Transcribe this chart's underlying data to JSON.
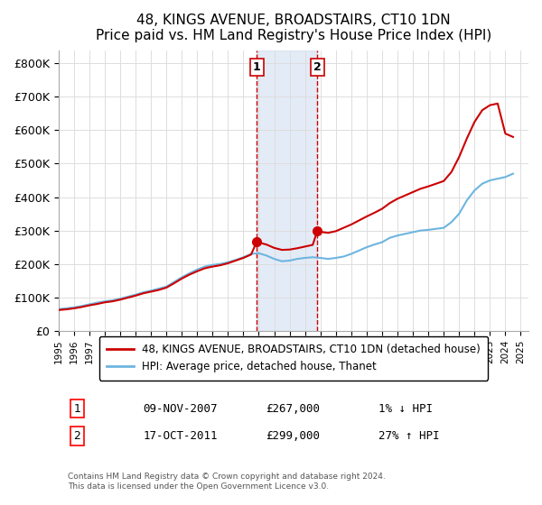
{
  "title": "48, KINGS AVENUE, BROADSTAIRS, CT10 1DN",
  "subtitle": "Price paid vs. HM Land Registry's House Price Index (HPI)",
  "ylabel_ticks": [
    "£0",
    "£100K",
    "£200K",
    "£300K",
    "£400K",
    "£500K",
    "£600K",
    "£700K",
    "£800K"
  ],
  "ytick_values": [
    0,
    100000,
    200000,
    300000,
    400000,
    500000,
    600000,
    700000,
    800000
  ],
  "ylim": [
    0,
    840000
  ],
  "xlim_start": 1995.5,
  "xlim_end": 2025.5,
  "sale1": {
    "date_label": "09-NOV-2007",
    "price": 267000,
    "pct": "1%",
    "direction": "↓",
    "year": 2007.87
  },
  "sale2": {
    "date_label": "17-OCT-2011",
    "price": 299000,
    "pct": "27%",
    "direction": "↑",
    "year": 2011.8
  },
  "hpi_color": "#6eb5e0",
  "price_color": "#cc0000",
  "sale_marker_color": "#cc0000",
  "shade_color": "#c8d8ee",
  "legend_label1": "48, KINGS AVENUE, BROADSTAIRS, CT10 1DN (detached house)",
  "legend_label2": "HPI: Average price, detached house, Thanet",
  "footer": "Contains HM Land Registry data © Crown copyright and database right 2024.\nThis data is licensed under the Open Government Licence v3.0.",
  "table_rows": [
    {
      "num": "1",
      "date": "09-NOV-2007",
      "price": "£267,000",
      "change": "1% ↓ HPI"
    },
    {
      "num": "2",
      "date": "17-OCT-2011",
      "price": "£299,000",
      "change": "27% ↑ HPI"
    }
  ],
  "hpi_x": [
    1995,
    1995.5,
    1996,
    1996.5,
    1997,
    1997.5,
    1998,
    1998.5,
    1999,
    1999.5,
    2000,
    2000.5,
    2001,
    2001.5,
    2002,
    2002.5,
    2003,
    2003.5,
    2004,
    2004.5,
    2005,
    2005.5,
    2006,
    2006.5,
    2007,
    2007.5,
    2008,
    2008.5,
    2009,
    2009.5,
    2010,
    2010.5,
    2011,
    2011.5,
    2012,
    2012.5,
    2013,
    2013.5,
    2014,
    2014.5,
    2015,
    2015.5,
    2016,
    2016.5,
    2017,
    2017.5,
    2018,
    2018.5,
    2019,
    2019.5,
    2020,
    2020.5,
    2021,
    2021.5,
    2022,
    2022.5,
    2023,
    2023.5,
    2024,
    2024.5
  ],
  "hpi_y": [
    65000,
    67000,
    70000,
    74000,
    79000,
    84000,
    88000,
    91000,
    96000,
    102000,
    108000,
    115000,
    120000,
    126000,
    132000,
    146000,
    160000,
    172000,
    183000,
    192000,
    197000,
    200000,
    205000,
    212000,
    220000,
    230000,
    232000,
    225000,
    215000,
    208000,
    210000,
    215000,
    218000,
    220000,
    218000,
    215000,
    218000,
    222000,
    230000,
    240000,
    250000,
    258000,
    265000,
    278000,
    285000,
    290000,
    295000,
    300000,
    302000,
    305000,
    308000,
    325000,
    350000,
    390000,
    420000,
    440000,
    450000,
    455000,
    460000,
    470000
  ],
  "price_x": [
    1995,
    1995.5,
    1996,
    1996.5,
    1997,
    1997.5,
    1998,
    1998.5,
    1999,
    1999.5,
    2000,
    2000.5,
    2001,
    2001.5,
    2002,
    2002.5,
    2003,
    2003.5,
    2004,
    2004.5,
    2005,
    2005.5,
    2006,
    2006.5,
    2007,
    2007.5,
    2007.87,
    2008,
    2008.5,
    2009,
    2009.5,
    2010,
    2010.5,
    2011,
    2011.5,
    2011.8,
    2012,
    2012.5,
    2013,
    2013.5,
    2014,
    2014.5,
    2015,
    2015.5,
    2016,
    2016.5,
    2017,
    2017.5,
    2018,
    2018.5,
    2019,
    2019.5,
    2020,
    2020.5,
    2021,
    2021.5,
    2022,
    2022.5,
    2023,
    2023.5,
    2024,
    2024.5
  ],
  "price_y": [
    62000,
    64000,
    67000,
    71000,
    76000,
    80000,
    85000,
    88000,
    93000,
    99000,
    105000,
    112000,
    117000,
    122000,
    129000,
    142000,
    156000,
    168000,
    178000,
    187000,
    192000,
    196000,
    202000,
    210000,
    218000,
    228000,
    267000,
    264000,
    258000,
    248000,
    242000,
    243000,
    247000,
    252000,
    257000,
    299000,
    296000,
    293000,
    298000,
    308000,
    318000,
    330000,
    342000,
    353000,
    365000,
    382000,
    395000,
    405000,
    415000,
    425000,
    432000,
    440000,
    448000,
    475000,
    520000,
    575000,
    625000,
    660000,
    675000,
    680000,
    590000,
    580000
  ]
}
